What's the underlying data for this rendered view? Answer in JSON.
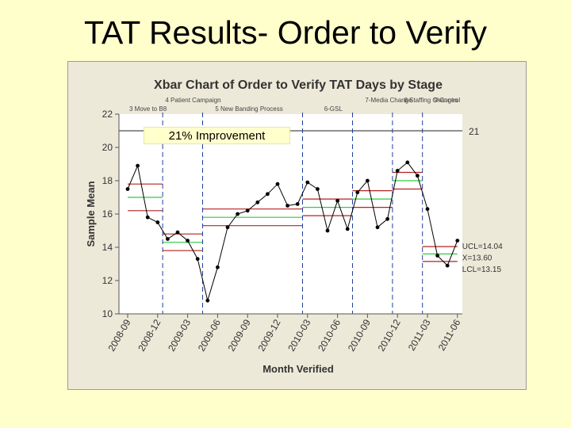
{
  "slide": {
    "title": "TAT Results- Order to Verify"
  },
  "callout": "21% Improvement",
  "colors": {
    "plot_bg": "#ffffff",
    "panel_bg": "#ede9d8",
    "limit": "#b22222",
    "center": "#2ecc40",
    "stage": "#1f3fa0",
    "data": "#000000"
  },
  "chart_data": {
    "type": "line",
    "title": "Xbar Chart of Order to Verify TAT Days by Stage",
    "xlabel": "Month Verified",
    "ylabel": "Sample Mean",
    "ylim": [
      10,
      22
    ],
    "yticks": [
      10,
      12,
      14,
      16,
      18,
      20,
      22
    ],
    "grid": false,
    "x_tick_labels": [
      "2008-09",
      "2008-12",
      "2009-03",
      "2009-06",
      "2009-09",
      "2009-12",
      "2010-03",
      "2010-06",
      "2010-09",
      "2010-12",
      "2011-03",
      "2011-06"
    ],
    "x_tick_months": [
      0,
      3,
      6,
      9,
      12,
      15,
      18,
      21,
      24,
      27,
      30,
      33
    ],
    "target_line": {
      "value": 21,
      "label": "21"
    },
    "stage_boundaries": [
      3.5,
      7.5,
      17.5,
      22.5,
      26.5,
      29.5
    ],
    "stages": [
      {
        "label": "3 Move to B8",
        "x": 0,
        "row": 1
      },
      {
        "label": "4 Patient Campaign",
        "x": 3.6,
        "row": 0
      },
      {
        "label": "5 New Banding Process",
        "x": 8.6,
        "row": 1
      },
      {
        "label": "6-GSL",
        "x": 19.5,
        "row": 1
      },
      {
        "label": "7-Media Change",
        "x": 23.6,
        "row": 0
      },
      {
        "label": "8 Staffing Changes",
        "x": 27.5,
        "row": -1
      },
      {
        "label": "9-Control",
        "x": 30.5,
        "row": 0
      }
    ],
    "series": [
      {
        "x": [
          0,
          1,
          2,
          3,
          4,
          5,
          6,
          7,
          8,
          9,
          10,
          11,
          12,
          13,
          14,
          15,
          16,
          17,
          18,
          19,
          20,
          21,
          22,
          23,
          24,
          25,
          26,
          27,
          28,
          29,
          30,
          31,
          32,
          33
        ],
        "values": [
          17.5,
          18.9,
          15.8,
          15.5,
          14.5,
          14.9,
          14.4,
          13.3,
          10.8,
          12.8,
          15.2,
          16.0,
          16.2,
          16.7,
          17.2,
          17.8,
          16.5,
          16.6,
          17.9,
          17.5,
          15.0,
          16.8,
          15.1,
          17.3,
          18.0,
          15.2,
          15.7,
          18.6,
          19.1,
          18.3,
          16.3,
          13.5,
          12.9,
          14.4
        ]
      }
    ],
    "stage_limits": [
      {
        "x": [
          0,
          3.5
        ],
        "ucl": 17.8,
        "cl": 17.0,
        "lcl": 16.2
      },
      {
        "x": [
          3.5,
          7.5
        ],
        "ucl": 14.8,
        "cl": 14.3,
        "lcl": 13.8
      },
      {
        "x": [
          7.5,
          17.5
        ],
        "ucl": 16.3,
        "cl": 15.8,
        "lcl": 15.3
      },
      {
        "x": [
          17.5,
          22.5
        ],
        "ucl": 16.9,
        "cl": 16.4,
        "lcl": 15.9
      },
      {
        "x": [
          22.5,
          26.5
        ],
        "ucl": 17.4,
        "cl": 16.9,
        "lcl": 16.4
      },
      {
        "x": [
          26.5,
          29.5
        ],
        "ucl": 18.5,
        "cl": 18.0,
        "lcl": 17.5
      },
      {
        "x": [
          29.5,
          33
        ],
        "ucl": 14.04,
        "cl": 13.6,
        "lcl": 13.15
      }
    ],
    "limit_labels": [
      "UCL=14.04",
      "X=13.60",
      "LCL=13.15"
    ]
  }
}
